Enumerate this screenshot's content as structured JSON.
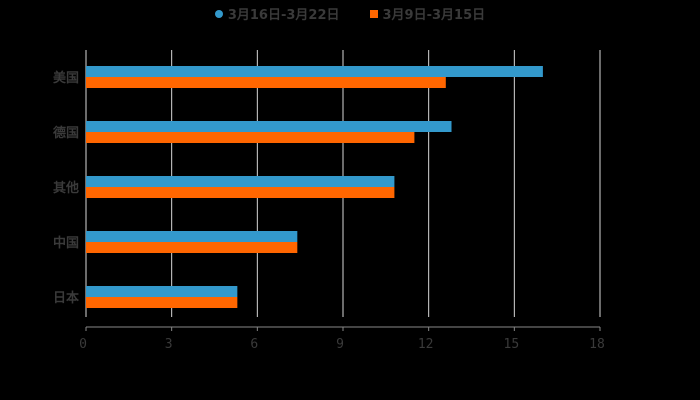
{
  "chart_data": {
    "type": "bar",
    "orientation": "horizontal",
    "title": "",
    "xlabel": "",
    "ylabel": "",
    "categories": [
      "美国",
      "德国",
      "其他",
      "中国",
      "日本"
    ],
    "series": [
      {
        "name": "3月16日-3月22日",
        "color": "#3399cc",
        "values": [
          16.0,
          12.8,
          10.8,
          7.4,
          5.3
        ]
      },
      {
        "name": "3月9日-3月15日",
        "color": "#ff6600",
        "values": [
          12.6,
          11.5,
          10.8,
          7.4,
          5.3
        ]
      }
    ],
    "xlim": [
      0,
      18
    ],
    "xticks": [
      0,
      3,
      6,
      9,
      12,
      15,
      18
    ],
    "grid": true,
    "legend_position": "top"
  },
  "legend": {
    "items": [
      {
        "label": "3月16日-3月22日",
        "color": "#3399cc",
        "marker": "circle"
      },
      {
        "label": "3月9日-3月15日",
        "color": "#ff6600",
        "marker": "square"
      }
    ]
  }
}
